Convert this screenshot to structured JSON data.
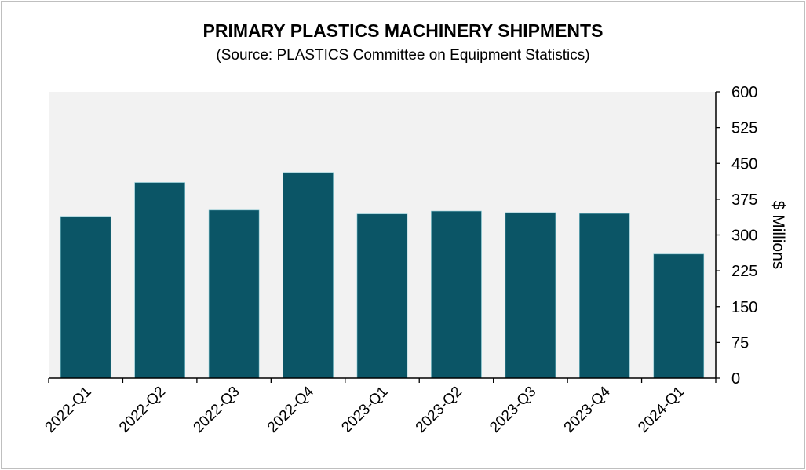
{
  "chart_data": {
    "type": "bar",
    "title": "PRIMARY PLASTICS MACHINERY SHIPMENTS",
    "subtitle": "(Source: PLASTICS Committee on Equipment Statistics)",
    "xlabel": "",
    "ylabel": "$ Millions",
    "y_axis_position": "right",
    "ylim": [
      0,
      600
    ],
    "yticks": [
      0,
      75,
      150,
      225,
      300,
      375,
      450,
      525,
      600
    ],
    "grid": false,
    "legend": "none",
    "categories": [
      "2022-Q1",
      "2022-Q2",
      "2022-Q3",
      "2022-Q4",
      "2023-Q1",
      "2023-Q2",
      "2023-Q3",
      "2023-Q4",
      "2024-Q1"
    ],
    "values": [
      339,
      410,
      352,
      431,
      344,
      350,
      347,
      345,
      260
    ],
    "colors": {
      "bar": "#0b5566",
      "plot_background": "#f2f2f2"
    }
  }
}
